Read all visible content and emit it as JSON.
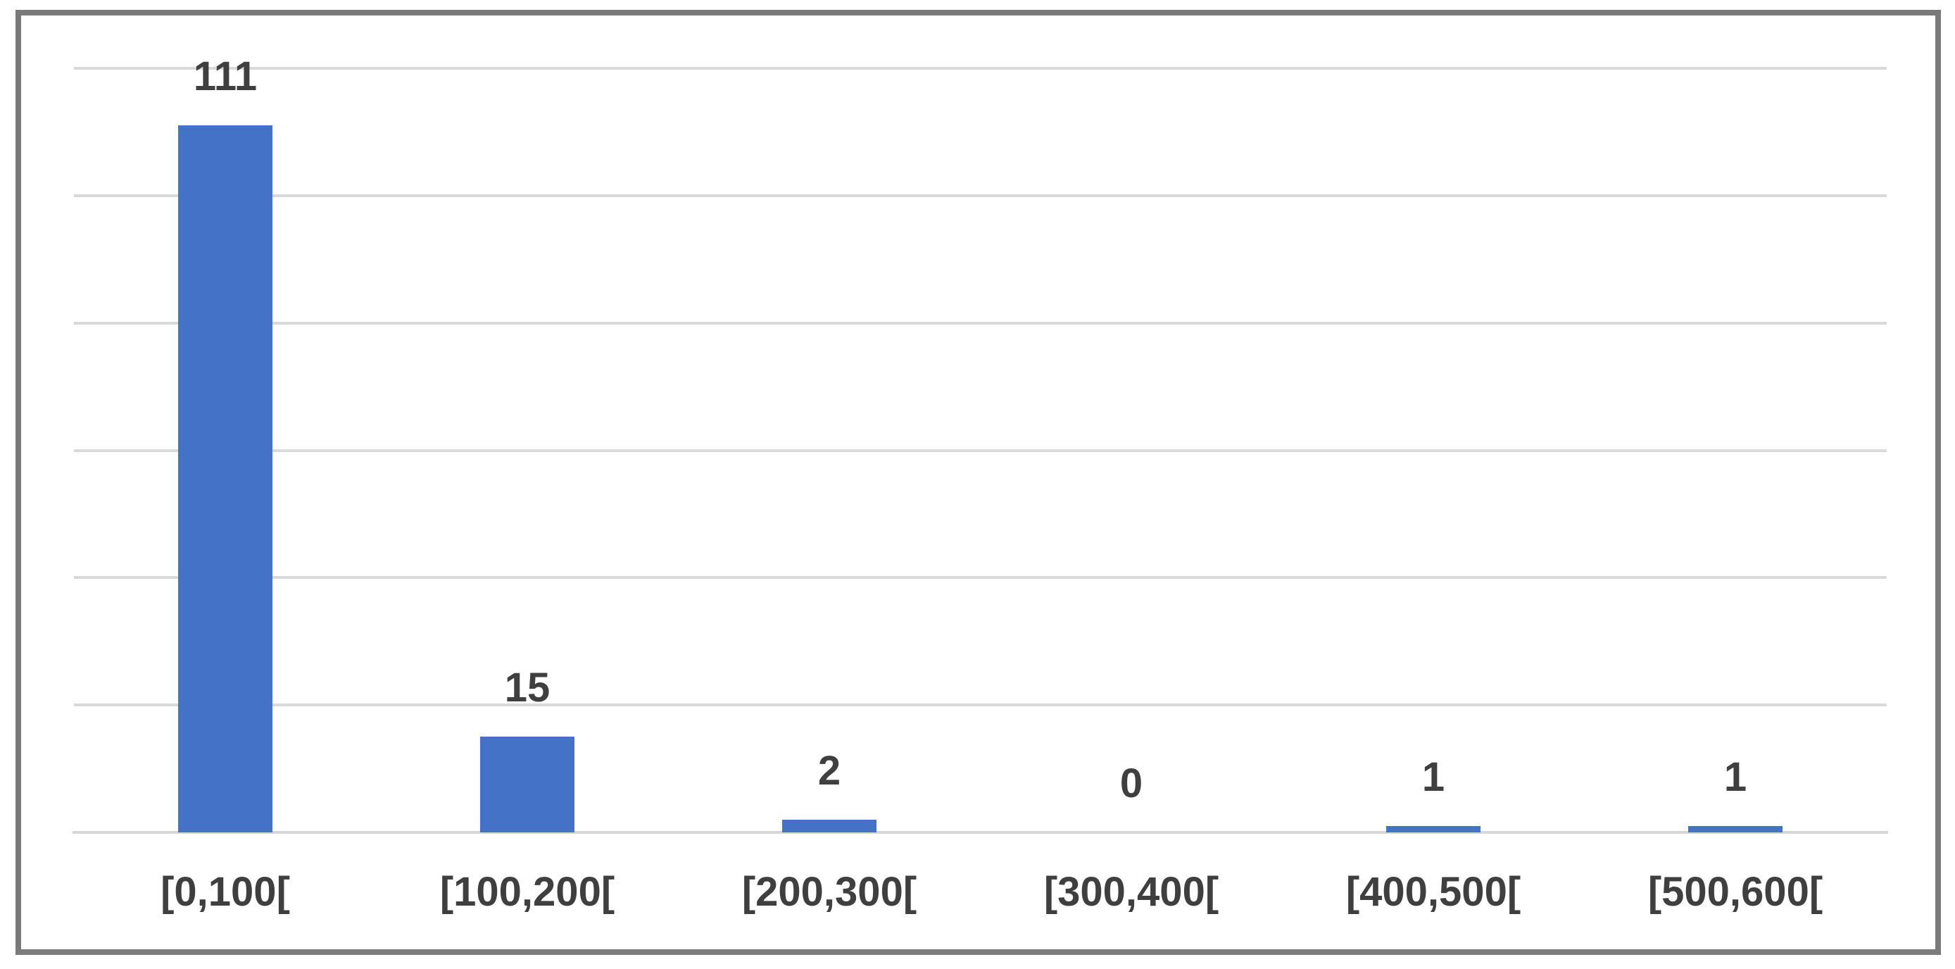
{
  "chart_data": {
    "type": "bar",
    "title": "",
    "xlabel": "",
    "ylabel": "",
    "categories": [
      "[0,100[",
      "[100,200[",
      "[200,300[",
      "[300,400[",
      "[400,500[",
      "[500,600["
    ],
    "values": [
      111,
      15,
      2,
      0,
      1,
      1
    ],
    "ylim": [
      0,
      120
    ],
    "grid_step": 20,
    "grid": "horizontal",
    "y_tick_labels_shown": false,
    "value_labels_shown": true,
    "legend_position": "none",
    "bar_color": "#4472C4"
  },
  "style": {
    "frame_border_color": "#7A7A7A",
    "gridline_color": "#D9D9D9",
    "axis_line_color": "#D6D6D6",
    "label_text_color": "#3F3F3F",
    "background_color": "#FFFFFF"
  }
}
